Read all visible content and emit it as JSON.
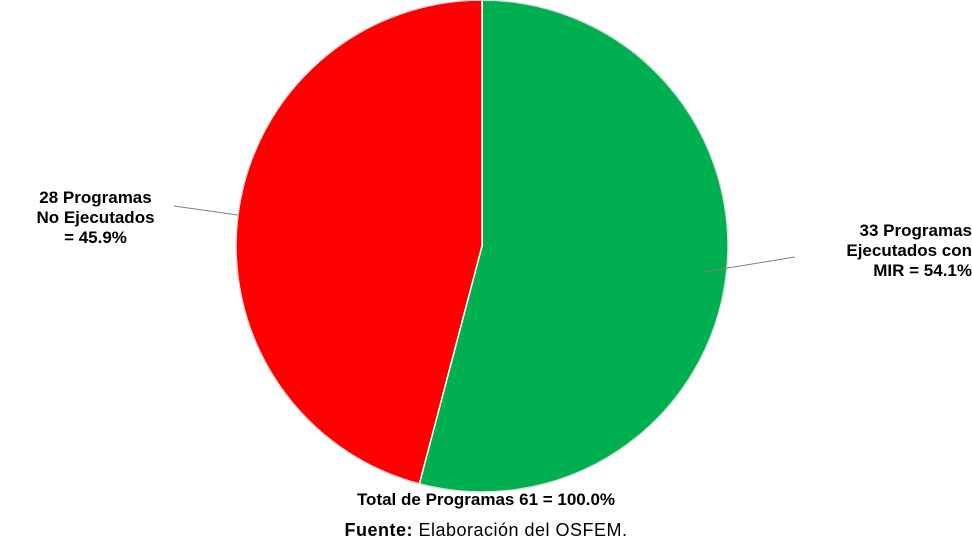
{
  "chart_data": {
    "type": "pie",
    "slices": [
      {
        "category": "Programas Ejecutados con MIR",
        "count": 33,
        "percent": 54.1,
        "color": "#00b050",
        "label_lines": [
          "33 Programas",
          "Ejecutados con",
          "MIR = 54.1%"
        ]
      },
      {
        "category": "Programas No Ejecutados",
        "count": 28,
        "percent": 45.9,
        "color": "#ff0000",
        "label_lines": [
          "28 Programas",
          "No Ejecutados",
          "= 45.9%"
        ]
      }
    ],
    "total_label": "Total de Programas 61 = 100.0%",
    "legend": "none"
  },
  "source": {
    "prefix": "Fuente:",
    "text": " Elaboración del OSFEM."
  }
}
